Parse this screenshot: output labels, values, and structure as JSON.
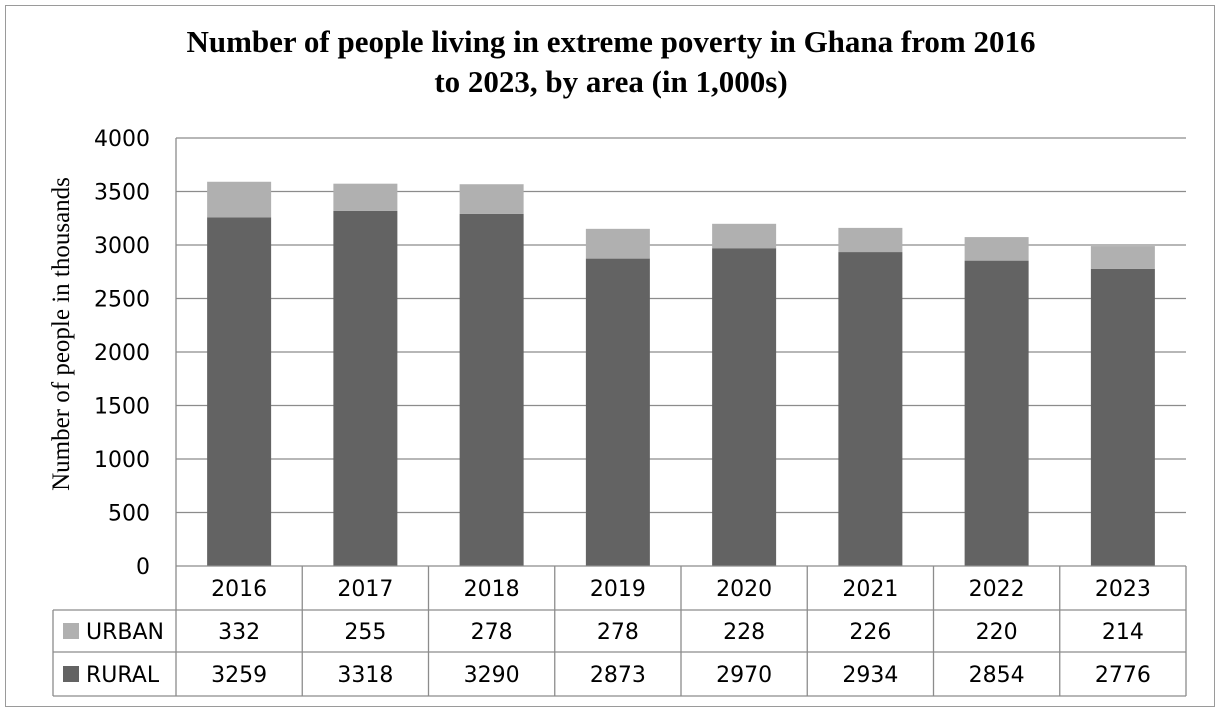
{
  "chart_data": {
    "type": "bar",
    "stacked": true,
    "title_lines": [
      "Number of people living in extreme poverty in Ghana from 2016",
      "to 2023, by area (in 1,000s)"
    ],
    "xlabel": "",
    "ylabel": "Number of people in thousands",
    "ylim": [
      0,
      4000
    ],
    "yticks": [
      "0",
      "500",
      "1000",
      "1500",
      "2000",
      "2500",
      "3000",
      "3500",
      "4000"
    ],
    "categories": [
      "2016",
      "2017",
      "2018",
      "2019",
      "2020",
      "2021",
      "2022",
      "2023"
    ],
    "series": [
      {
        "name": "RURAL",
        "color": "#636363",
        "values": [
          3259,
          3318,
          3290,
          2873,
          2970,
          2934,
          2854,
          2776
        ]
      },
      {
        "name": "URBAN",
        "color": "#b0b0b0",
        "values": [
          332,
          255,
          278,
          278,
          228,
          226,
          220,
          214
        ]
      }
    ],
    "data_table_order": [
      "URBAN",
      "RURAL"
    ],
    "grid": true,
    "legend": "data-table-left"
  }
}
